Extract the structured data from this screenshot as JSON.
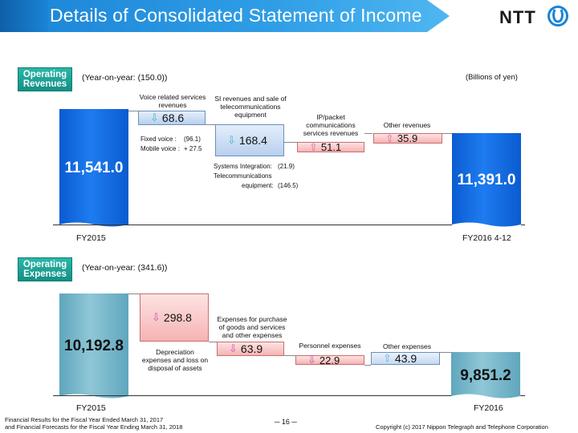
{
  "header": {
    "title": "Details of Consolidated Statement of Income",
    "logo_text": "NTT"
  },
  "revenues": {
    "badge": "Operating Revenues",
    "yoy": "(Year-on-year: (150.0))",
    "unit": "(Billions of yen)",
    "start_value": "11,541.0",
    "end_value": "11,391.0",
    "start_label": "FY2015",
    "end_label": "FY2016 4-12",
    "voice": {
      "label": "Voice related services revenues",
      "value": "68.6",
      "fixed_label": "Fixed voice :",
      "fixed_value": "(96.1)",
      "mobile_label": "Mobile voice :",
      "mobile_value": "+ 27.5"
    },
    "si": {
      "label": "SI revenues and sale of telecommunications equipment",
      "value": "168.4",
      "si_label": "Systems Integration:",
      "si_value": "(21.9)",
      "tel_label1": "Telecommunications",
      "tel_label2": "equipment:",
      "tel_value": "(146.5)"
    },
    "ip": {
      "label": "IP/packet communications services revenues",
      "value": "51.1"
    },
    "other": {
      "label": "Other revenues",
      "value": "35.9"
    }
  },
  "expenses": {
    "badge": "Operating Expenses",
    "yoy": "(Year-on-year: (341.6))",
    "start_value": "10,192.8",
    "end_value": "9,851.2",
    "start_label": "FY2015",
    "end_label": "FY2016",
    "depreciation": {
      "label": "Depreciation expenses and loss on disposal of assets",
      "value": "298.8"
    },
    "purchase": {
      "label": "Expenses for purchase of goods and services and other expenses",
      "value": "63.9"
    },
    "personnel": {
      "label": "Personnel expenses",
      "value": "22.9"
    },
    "other": {
      "label": "Other expenses",
      "value": "43.9"
    }
  },
  "footer": {
    "left1": "Financial Results for the Fiscal Year Ended March 31, 2017",
    "left2": "and Financial Forecasts for the Fiscal Year Ending March 31, 2018",
    "page": "─ 16 ─",
    "copyright": "Copyright (c) 2017 Nippon Telegraph and Telephone Corporation"
  },
  "colors": {
    "title_blue": "#1b84d6",
    "revenue_blue": "#0a5bd0",
    "expense_teal": "#8fc7d7",
    "badge_teal": "#138f84"
  }
}
